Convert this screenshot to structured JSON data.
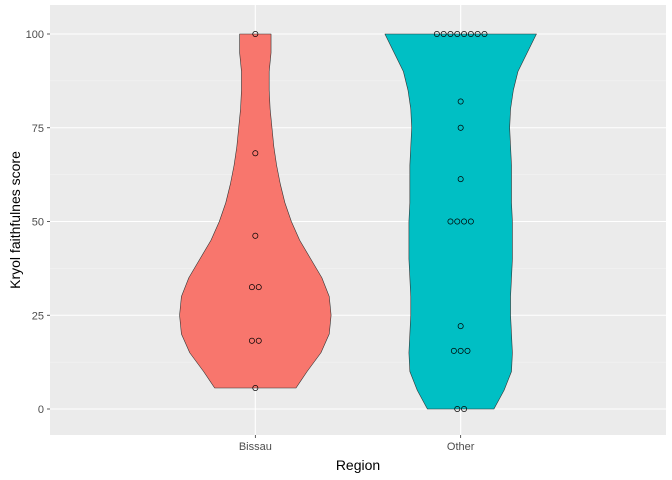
{
  "chart_data": {
    "type": "violin",
    "xlabel": "Region",
    "ylabel": "Kryol faithfulnes score",
    "categories": [
      "Bissau",
      "Other"
    ],
    "ylim": [
      -7,
      105
    ],
    "y_ticks": [
      0,
      25,
      50,
      75,
      100
    ],
    "grid": true,
    "legend": "none",
    "colors": {
      "Bissau": "#F8766D",
      "Other": "#00BFC4",
      "panel": "#EBEBEB",
      "grid": "#FFFFFF"
    },
    "groups": [
      {
        "name": "Bissau",
        "points": [
          100,
          68.2,
          46.2,
          32.5,
          32.5,
          18.2,
          18.2,
          5.6
        ],
        "density": [
          [
            5.6,
            0.44
          ],
          [
            10,
            0.56
          ],
          [
            15,
            0.71
          ],
          [
            20,
            0.8
          ],
          [
            25,
            0.82
          ],
          [
            30,
            0.8
          ],
          [
            35,
            0.72
          ],
          [
            40,
            0.6
          ],
          [
            45,
            0.48
          ],
          [
            50,
            0.39
          ],
          [
            55,
            0.32
          ],
          [
            60,
            0.27
          ],
          [
            65,
            0.23
          ],
          [
            70,
            0.2
          ],
          [
            75,
            0.18
          ],
          [
            80,
            0.16
          ],
          [
            85,
            0.15
          ],
          [
            90,
            0.15
          ],
          [
            95,
            0.17
          ],
          [
            100,
            0.17
          ]
        ]
      },
      {
        "name": "Other",
        "points": [
          100,
          100,
          100,
          100,
          100,
          100,
          100,
          100,
          82,
          75,
          61.3,
          50,
          50,
          50,
          50,
          22.1,
          15.5,
          15.5,
          15.5,
          0,
          0
        ],
        "density": [
          [
            0,
            0.36
          ],
          [
            5,
            0.47
          ],
          [
            10,
            0.55
          ],
          [
            15,
            0.56
          ],
          [
            20,
            0.55
          ],
          [
            25,
            0.54
          ],
          [
            30,
            0.54
          ],
          [
            35,
            0.55
          ],
          [
            40,
            0.56
          ],
          [
            45,
            0.56
          ],
          [
            50,
            0.56
          ],
          [
            55,
            0.55
          ],
          [
            60,
            0.55
          ],
          [
            65,
            0.55
          ],
          [
            70,
            0.54
          ],
          [
            75,
            0.53
          ],
          [
            80,
            0.54
          ],
          [
            85,
            0.57
          ],
          [
            90,
            0.62
          ],
          [
            95,
            0.72
          ],
          [
            100,
            0.82
          ]
        ]
      }
    ]
  }
}
